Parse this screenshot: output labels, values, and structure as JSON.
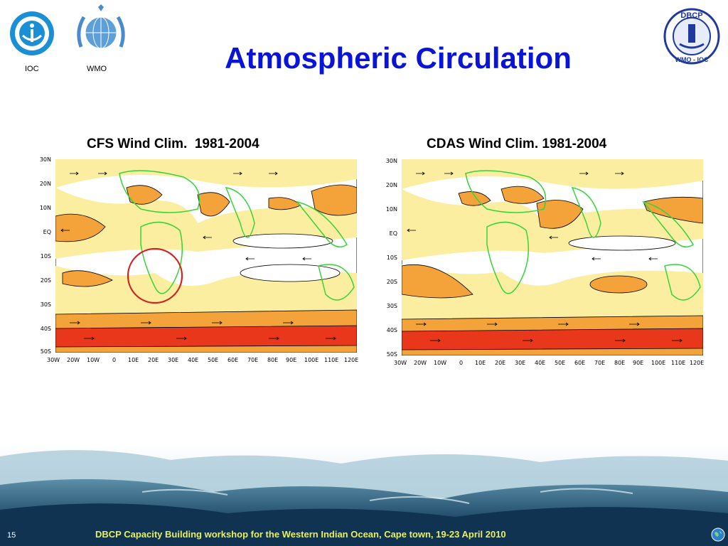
{
  "header": {
    "title": "Atmospheric Circulation",
    "logos": [
      {
        "name": "IOC",
        "icon": "ioc-logo-icon"
      },
      {
        "name": "WMO",
        "icon": "wmo-logo-icon"
      },
      {
        "name": "DBCP",
        "icon": "dbcp-logo-icon",
        "text_top": "DBCP",
        "text_bottom": "WMO - IOC"
      }
    ]
  },
  "maps": [
    {
      "title": "CFS Wind Clim.  1981-2004",
      "y_labels": [
        "30N",
        "20N",
        "10N",
        "EQ",
        "10S",
        "20S",
        "30S",
        "40S",
        "50S"
      ],
      "x_labels": [
        "30W",
        "20W",
        "10W",
        "0",
        "10E",
        "20E",
        "30E",
        "40E",
        "50E",
        "60E",
        "70E",
        "80E",
        "90E",
        "100E",
        "110E",
        "120E"
      ],
      "highlight": "red-circle"
    },
    {
      "title": "CDAS Wind Clim. 1981-2004",
      "y_labels": [
        "30N",
        "20N",
        "10N",
        "EQ",
        "10S",
        "20S",
        "30S",
        "40S",
        "50S"
      ],
      "x_labels": [
        "30W",
        "20W",
        "10W",
        "0",
        "10E",
        "20E",
        "30E",
        "40E",
        "50E",
        "60E",
        "70E",
        "80E",
        "90E",
        "100E",
        "110E",
        "120E"
      ]
    }
  ],
  "colors": {
    "title": "#0a14d6",
    "contour_low": "#fbeea0",
    "contour_mid": "#f3a33a",
    "contour_high": "#e8371a",
    "coast": "#37d33a",
    "footer_text": "#e9f05a"
  },
  "footer": {
    "page_number": "15",
    "text": "DBCP Capacity Building workshop for the Western Indian Ocean, Cape town, 19-23 April 2010"
  }
}
